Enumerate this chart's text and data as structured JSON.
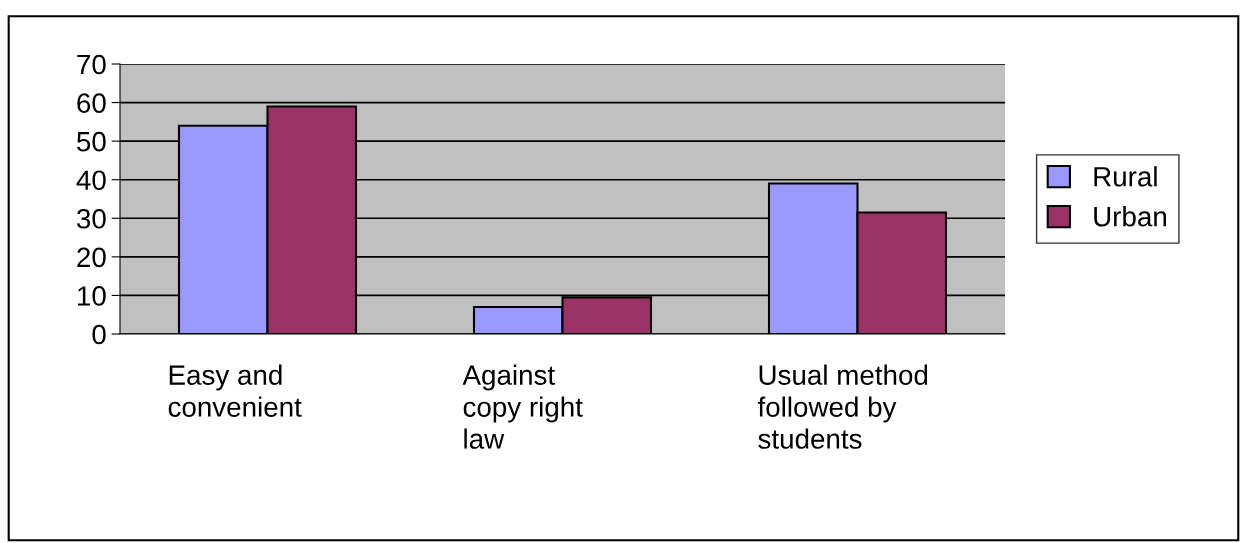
{
  "chart_data": {
    "type": "bar",
    "categories": [
      "Easy and\nconvenient",
      "Against\ncopy right\nlaw",
      "Usual method\nfollowed by\nstudents"
    ],
    "series": [
      {
        "name": "Rural",
        "color": "#9999ff",
        "values": [
          54,
          7,
          39
        ]
      },
      {
        "name": "Urban",
        "color": "#993366",
        "values": [
          59,
          9.5,
          31.5
        ]
      }
    ],
    "ylim": [
      0,
      70
    ],
    "yticks": [
      0,
      10,
      20,
      30,
      40,
      50,
      60,
      70
    ],
    "grid": "y",
    "legend": "right"
  }
}
